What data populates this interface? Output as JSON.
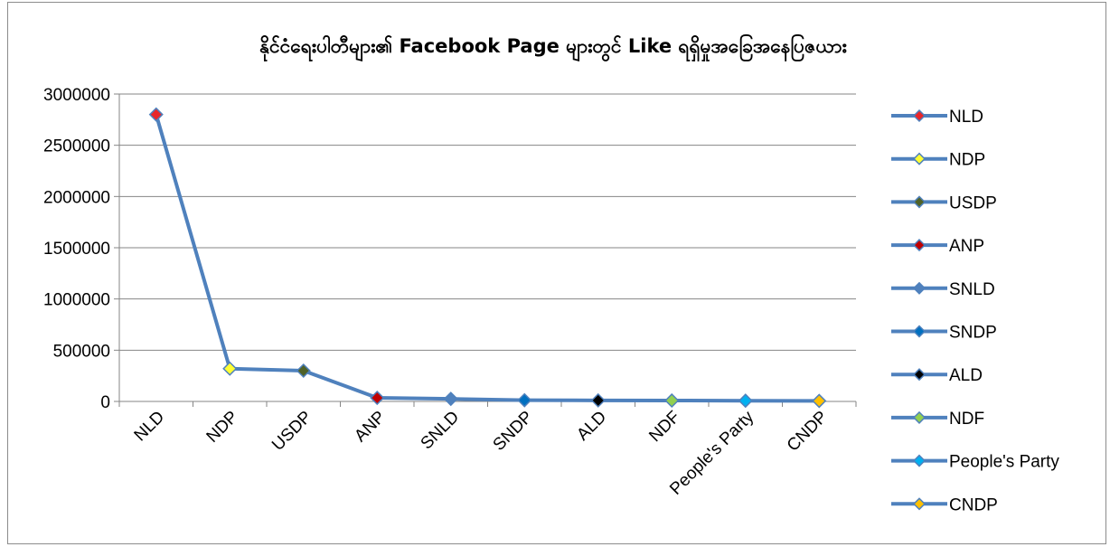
{
  "chart_data": {
    "type": "line",
    "title": "နိုင်ငံရေးပါတီများ၏ Facebook Page များတွင် Like ရရှိမှုအခြေအနေပြဇယား",
    "xlabel": "",
    "ylabel": "",
    "categories": [
      "NLD",
      "NDP",
      "USDP",
      "ANP",
      "SNLD",
      "SNDP",
      "ALD",
      "NDF",
      "People's Party",
      "CNDP"
    ],
    "values": [
      2800000,
      320000,
      300000,
      35000,
      25000,
      12000,
      10000,
      9000,
      7000,
      5000
    ],
    "ylim": [
      0,
      3000000
    ],
    "yticks": [
      "0",
      "500000",
      "1000000",
      "1500000",
      "2000000",
      "2500000",
      "3000000"
    ],
    "line_color": "#4f81bd",
    "grid": "horizontal",
    "legend_position": "right",
    "marker_colors": [
      "#e8262a",
      "#ffff33",
      "#4f6228",
      "#c00000",
      "#4f81bd",
      "#0070c0",
      "#000000",
      "#92d050",
      "#00b0f0",
      "#ffc000"
    ],
    "legend": [
      "NLD",
      "NDP",
      "USDP",
      "ANP",
      "SNLD",
      "SNDP",
      "ALD",
      "NDF",
      "People's Party",
      "CNDP"
    ]
  }
}
